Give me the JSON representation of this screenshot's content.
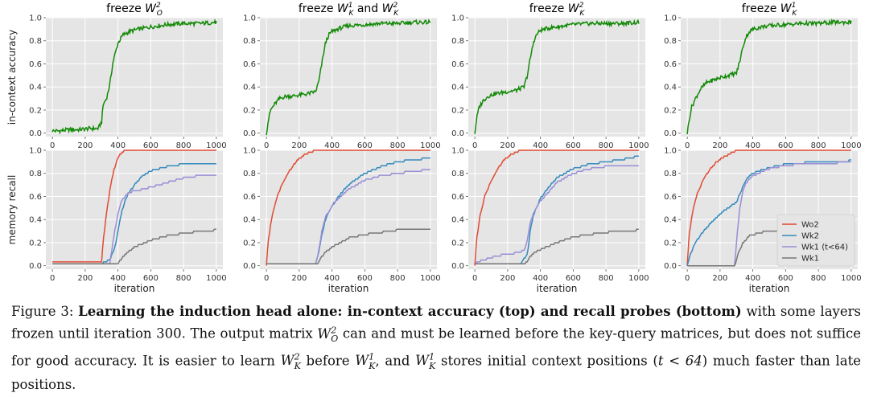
{
  "colors": {
    "Wo2": "#e24a33",
    "Wk2": "#348abd",
    "Wk1_early": "#988ed5",
    "Wk1": "#777777",
    "accuracy": "#138a07",
    "panel_bg": "#e5e5e5",
    "grid": "#ffffff"
  },
  "chart_data": [
    {
      "type": "line",
      "row": "top",
      "col": 0,
      "title_pre": "freeze ",
      "title_math": "W",
      "title_sub": "O",
      "title_sup": "2",
      "title_mid": "",
      "title_math2": "",
      "title_sub2": "",
      "title_sup2": "",
      "ylabel": "in-context accuracy",
      "xlabel": "",
      "xlim": [
        -40,
        1040
      ],
      "ylim": [
        -0.03,
        1.0
      ],
      "xticks": [
        "0",
        "200",
        "400",
        "600",
        "800",
        "1000"
      ],
      "yticks": [
        "0.0",
        "0.2",
        "0.4",
        "0.6",
        "0.8",
        "1.0"
      ],
      "series": [
        {
          "name": "accuracy",
          "x": [
            0,
            40,
            100,
            160,
            220,
            280,
            300,
            310,
            330,
            350,
            370,
            400,
            430,
            470,
            520,
            600,
            700,
            800,
            900,
            1000
          ],
          "values": [
            0.02,
            0.02,
            0.03,
            0.03,
            0.04,
            0.04,
            0.1,
            0.25,
            0.3,
            0.42,
            0.62,
            0.78,
            0.85,
            0.88,
            0.9,
            0.92,
            0.94,
            0.95,
            0.95,
            0.96
          ]
        }
      ]
    },
    {
      "type": "line",
      "row": "top",
      "col": 1,
      "title_pre": "freeze ",
      "title_math": "W",
      "title_sub": "K",
      "title_sup": "1",
      "title_mid": " and ",
      "title_math2": "W",
      "title_sub2": "K",
      "title_sup2": "2",
      "ylabel": "",
      "xlabel": "",
      "xlim": [
        -40,
        1040
      ],
      "ylim": [
        -0.03,
        1.0
      ],
      "xticks": [
        "0",
        "200",
        "400",
        "600",
        "800",
        "1000"
      ],
      "yticks": [
        "0.0",
        "0.2",
        "0.4",
        "0.6",
        "0.8",
        "1.0"
      ],
      "series": [
        {
          "name": "accuracy",
          "x": [
            0,
            10,
            25,
            50,
            80,
            120,
            160,
            200,
            250,
            300,
            320,
            340,
            360,
            380,
            400,
            450,
            500,
            600,
            700,
            800,
            900,
            1000
          ],
          "values": [
            0.0,
            0.1,
            0.2,
            0.25,
            0.3,
            0.32,
            0.32,
            0.33,
            0.34,
            0.36,
            0.45,
            0.62,
            0.78,
            0.85,
            0.88,
            0.91,
            0.93,
            0.94,
            0.95,
            0.95,
            0.96,
            0.96
          ]
        }
      ]
    },
    {
      "type": "line",
      "row": "top",
      "col": 2,
      "title_pre": "freeze ",
      "title_math": "W",
      "title_sub": "K",
      "title_sup": "2",
      "title_mid": "",
      "title_math2": "",
      "title_sub2": "",
      "title_sup2": "",
      "ylabel": "",
      "xlabel": "",
      "xlim": [
        -40,
        1040
      ],
      "ylim": [
        -0.03,
        1.0
      ],
      "xticks": [
        "0",
        "200",
        "400",
        "600",
        "800",
        "1000"
      ],
      "yticks": [
        "0.0",
        "0.2",
        "0.4",
        "0.6",
        "0.8",
        "1.0"
      ],
      "series": [
        {
          "name": "accuracy",
          "x": [
            0,
            10,
            25,
            50,
            80,
            120,
            160,
            200,
            250,
            300,
            320,
            340,
            360,
            380,
            400,
            450,
            500,
            600,
            700,
            800,
            900,
            1000
          ],
          "values": [
            0.0,
            0.12,
            0.22,
            0.28,
            0.32,
            0.34,
            0.35,
            0.36,
            0.37,
            0.4,
            0.5,
            0.66,
            0.8,
            0.86,
            0.89,
            0.91,
            0.92,
            0.94,
            0.95,
            0.95,
            0.95,
            0.96
          ]
        }
      ]
    },
    {
      "type": "line",
      "row": "top",
      "col": 3,
      "title_pre": "freeze ",
      "title_math": "W",
      "title_sub": "K",
      "title_sup": "1",
      "title_mid": "",
      "title_math2": "",
      "title_sub2": "",
      "title_sup2": "",
      "ylabel": "",
      "xlabel": "",
      "xlim": [
        -40,
        1040
      ],
      "ylim": [
        -0.03,
        1.0
      ],
      "xticks": [
        "0",
        "200",
        "400",
        "600",
        "800",
        "1000"
      ],
      "yticks": [
        "0.0",
        "0.2",
        "0.4",
        "0.6",
        "0.8",
        "1.0"
      ],
      "series": [
        {
          "name": "accuracy",
          "x": [
            0,
            10,
            25,
            50,
            80,
            120,
            160,
            200,
            250,
            300,
            320,
            340,
            360,
            380,
            400,
            450,
            500,
            600,
            700,
            800,
            900,
            1000
          ],
          "values": [
            0.0,
            0.1,
            0.22,
            0.3,
            0.38,
            0.44,
            0.46,
            0.48,
            0.5,
            0.52,
            0.62,
            0.75,
            0.84,
            0.88,
            0.9,
            0.92,
            0.93,
            0.94,
            0.95,
            0.95,
            0.96,
            0.96
          ]
        }
      ]
    },
    {
      "type": "line",
      "row": "bottom",
      "col": 0,
      "title_pre": "",
      "title_math": "",
      "title_sub": "",
      "title_sup": "",
      "title_mid": "",
      "title_math2": "",
      "title_sub2": "",
      "title_sup2": "",
      "ylabel": "memory recall",
      "xlabel": "iteration",
      "xlim": [
        -40,
        1040
      ],
      "ylim": [
        -0.03,
        1.0
      ],
      "xticks": [
        "0",
        "200",
        "400",
        "600",
        "800",
        "1000"
      ],
      "yticks": [
        "0.0",
        "0.2",
        "0.4",
        "0.6",
        "0.8",
        "1.0"
      ],
      "series": [
        {
          "name": "Wo2",
          "x": [
            0,
            300,
            310,
            330,
            350,
            370,
            390,
            410,
            430,
            450,
            1000
          ],
          "values": [
            0.03,
            0.03,
            0.22,
            0.45,
            0.65,
            0.8,
            0.9,
            0.96,
            0.99,
            1.0,
            1.0
          ]
        },
        {
          "name": "Wk2",
          "x": [
            0,
            300,
            350,
            380,
            400,
            420,
            440,
            460,
            500,
            550,
            600,
            700,
            800,
            900,
            1000
          ],
          "values": [
            0.02,
            0.02,
            0.05,
            0.15,
            0.3,
            0.45,
            0.55,
            0.62,
            0.7,
            0.78,
            0.82,
            0.86,
            0.88,
            0.89,
            0.89
          ]
        },
        {
          "name": "Wk1 (t<64)",
          "x": [
            0,
            350,
            380,
            400,
            420,
            450,
            500,
            550,
            600,
            700,
            800,
            900,
            1000
          ],
          "values": [
            0.01,
            0.02,
            0.3,
            0.45,
            0.55,
            0.62,
            0.65,
            0.66,
            0.68,
            0.72,
            0.76,
            0.78,
            0.79
          ]
        },
        {
          "name": "Wk1",
          "x": [
            0,
            400,
            430,
            460,
            500,
            600,
            700,
            800,
            900,
            1000
          ],
          "values": [
            0.01,
            0.02,
            0.08,
            0.12,
            0.16,
            0.22,
            0.26,
            0.28,
            0.3,
            0.31
          ]
        }
      ]
    },
    {
      "type": "line",
      "row": "bottom",
      "col": 1,
      "title_pre": "",
      "title_math": "",
      "title_sub": "",
      "title_sup": "",
      "title_mid": "",
      "title_math2": "",
      "title_sub2": "",
      "title_sup2": "",
      "ylabel": "",
      "xlabel": "iteration",
      "xlim": [
        -40,
        1040
      ],
      "ylim": [
        -0.03,
        1.0
      ],
      "xticks": [
        "0",
        "200",
        "400",
        "600",
        "800",
        "1000"
      ],
      "yticks": [
        "0.0",
        "0.2",
        "0.4",
        "0.6",
        "0.8",
        "1.0"
      ],
      "series": [
        {
          "name": "Wo2",
          "x": [
            0,
            10,
            30,
            60,
            100,
            140,
            180,
            220,
            260,
            300,
            1000
          ],
          "values": [
            0.0,
            0.2,
            0.4,
            0.58,
            0.72,
            0.82,
            0.9,
            0.95,
            0.98,
            1.0,
            1.0
          ]
        },
        {
          "name": "Wk2",
          "x": [
            0,
            300,
            320,
            340,
            360,
            400,
            450,
            500,
            600,
            700,
            800,
            900,
            1000
          ],
          "values": [
            0.01,
            0.01,
            0.12,
            0.28,
            0.4,
            0.52,
            0.62,
            0.7,
            0.8,
            0.86,
            0.9,
            0.92,
            0.93
          ]
        },
        {
          "name": "Wk1 (t<64)",
          "x": [
            0,
            300,
            320,
            340,
            360,
            400,
            450,
            500,
            600,
            700,
            800,
            900,
            1000
          ],
          "values": [
            0.01,
            0.01,
            0.14,
            0.32,
            0.42,
            0.52,
            0.6,
            0.66,
            0.74,
            0.78,
            0.8,
            0.82,
            0.83
          ]
        },
        {
          "name": "Wk1",
          "x": [
            0,
            310,
            330,
            360,
            400,
            500,
            600,
            700,
            800,
            900,
            1000
          ],
          "values": [
            0.01,
            0.01,
            0.06,
            0.12,
            0.16,
            0.24,
            0.27,
            0.29,
            0.31,
            0.32,
            0.32
          ]
        }
      ]
    },
    {
      "type": "line",
      "row": "bottom",
      "col": 2,
      "title_pre": "",
      "title_math": "",
      "title_sub": "",
      "title_sup": "",
      "title_mid": "",
      "title_math2": "",
      "title_sub2": "",
      "title_sup2": "",
      "ylabel": "",
      "xlabel": "iteration",
      "xlim": [
        -40,
        1040
      ],
      "ylim": [
        -0.03,
        1.0
      ],
      "xticks": [
        "0",
        "200",
        "400",
        "600",
        "800",
        "1000"
      ],
      "yticks": [
        "0.0",
        "0.2",
        "0.4",
        "0.6",
        "0.8",
        "1.0"
      ],
      "series": [
        {
          "name": "Wo2",
          "x": [
            0,
            10,
            30,
            60,
            100,
            140,
            180,
            220,
            260,
            300,
            1000
          ],
          "values": [
            0.0,
            0.22,
            0.42,
            0.6,
            0.74,
            0.84,
            0.92,
            0.96,
            0.99,
            1.0,
            1.0
          ]
        },
        {
          "name": "Wk2",
          "x": [
            0,
            200,
            280,
            320,
            340,
            360,
            400,
            450,
            500,
            600,
            700,
            800,
            900,
            1000
          ],
          "values": [
            0.01,
            0.01,
            0.02,
            0.1,
            0.32,
            0.45,
            0.58,
            0.68,
            0.76,
            0.84,
            0.88,
            0.9,
            0.92,
            0.95
          ]
        },
        {
          "name": "Wk1 (t<64)",
          "x": [
            0,
            50,
            100,
            150,
            200,
            250,
            300,
            320,
            340,
            360,
            400,
            450,
            500,
            600,
            700,
            800,
            900,
            1000
          ],
          "values": [
            0.02,
            0.05,
            0.07,
            0.09,
            0.1,
            0.11,
            0.13,
            0.22,
            0.38,
            0.46,
            0.56,
            0.64,
            0.72,
            0.8,
            0.84,
            0.86,
            0.87,
            0.87
          ]
        },
        {
          "name": "Wk1",
          "x": [
            0,
            300,
            320,
            350,
            400,
            500,
            600,
            700,
            800,
            900,
            1000
          ],
          "values": [
            0.01,
            0.01,
            0.04,
            0.1,
            0.14,
            0.2,
            0.25,
            0.27,
            0.29,
            0.3,
            0.31
          ]
        }
      ]
    },
    {
      "type": "line",
      "row": "bottom",
      "col": 3,
      "title_pre": "",
      "title_math": "",
      "title_sub": "",
      "title_sup": "",
      "title_mid": "",
      "title_math2": "",
      "title_sub2": "",
      "title_sup2": "",
      "ylabel": "",
      "xlabel": "iteration",
      "xlim": [
        -40,
        1040
      ],
      "ylim": [
        -0.03,
        1.0
      ],
      "xticks": [
        "0",
        "200",
        "400",
        "600",
        "800",
        "1000"
      ],
      "yticks": [
        "0.0",
        "0.2",
        "0.4",
        "0.6",
        "0.8",
        "1.0"
      ],
      "legend": {
        "placement": "bottom-right",
        "entries": [
          "Wo2",
          "Wk2",
          "Wk1 (t<64)",
          "Wk1"
        ]
      },
      "series": [
        {
          "name": "Wo2",
          "x": [
            0,
            10,
            30,
            60,
            100,
            140,
            180,
            220,
            260,
            300,
            1000
          ],
          "values": [
            0.0,
            0.25,
            0.45,
            0.62,
            0.75,
            0.84,
            0.9,
            0.94,
            0.97,
            1.0,
            1.0
          ]
        },
        {
          "name": "Wk2",
          "x": [
            0,
            20,
            50,
            100,
            150,
            200,
            250,
            300,
            330,
            360,
            400,
            500,
            600,
            700,
            800,
            900,
            1000
          ],
          "values": [
            0.0,
            0.1,
            0.2,
            0.3,
            0.38,
            0.45,
            0.5,
            0.55,
            0.65,
            0.75,
            0.8,
            0.85,
            0.88,
            0.89,
            0.9,
            0.9,
            0.91
          ]
        },
        {
          "name": "Wk1 (t<64)",
          "x": [
            0,
            290,
            300,
            320,
            340,
            360,
            400,
            500,
            600,
            700,
            800,
            900,
            1000
          ],
          "values": [
            0.0,
            0.0,
            0.2,
            0.5,
            0.66,
            0.72,
            0.78,
            0.84,
            0.87,
            0.88,
            0.89,
            0.89,
            0.9
          ]
        },
        {
          "name": "Wk1",
          "x": [
            0,
            290,
            310,
            340,
            380,
            450,
            500,
            600,
            700,
            800,
            900,
            1000
          ],
          "values": [
            0.0,
            0.0,
            0.1,
            0.2,
            0.26,
            0.29,
            0.3,
            0.31,
            0.31,
            0.32,
            0.32,
            0.33
          ]
        }
      ]
    }
  ],
  "caption": {
    "prefix": "Figure 3: ",
    "bold_title": "Learning the induction head alone:  in-context accuracy (top) and recall probes (bottom)",
    "part1": " with some layers frozen until iteration 300. The output matrix ",
    "part2": " can and must be learned before the key-query matrices, but does not suffice for good accuracy. It is easier to learn ",
    "part3": " before ",
    "part4": ", and ",
    "part5": " stores initial context positions (",
    "math_t": "t < 64",
    "part6": ") much faster than late positions.",
    "m1": {
      "base": "W",
      "sub": "O",
      "sup": "2"
    },
    "m2": {
      "base": "W",
      "sub": "K",
      "sup": "2"
    },
    "m3": {
      "base": "W",
      "sub": "K",
      "sup": "1"
    },
    "m4": {
      "base": "W",
      "sub": "K",
      "sup": "1"
    }
  }
}
